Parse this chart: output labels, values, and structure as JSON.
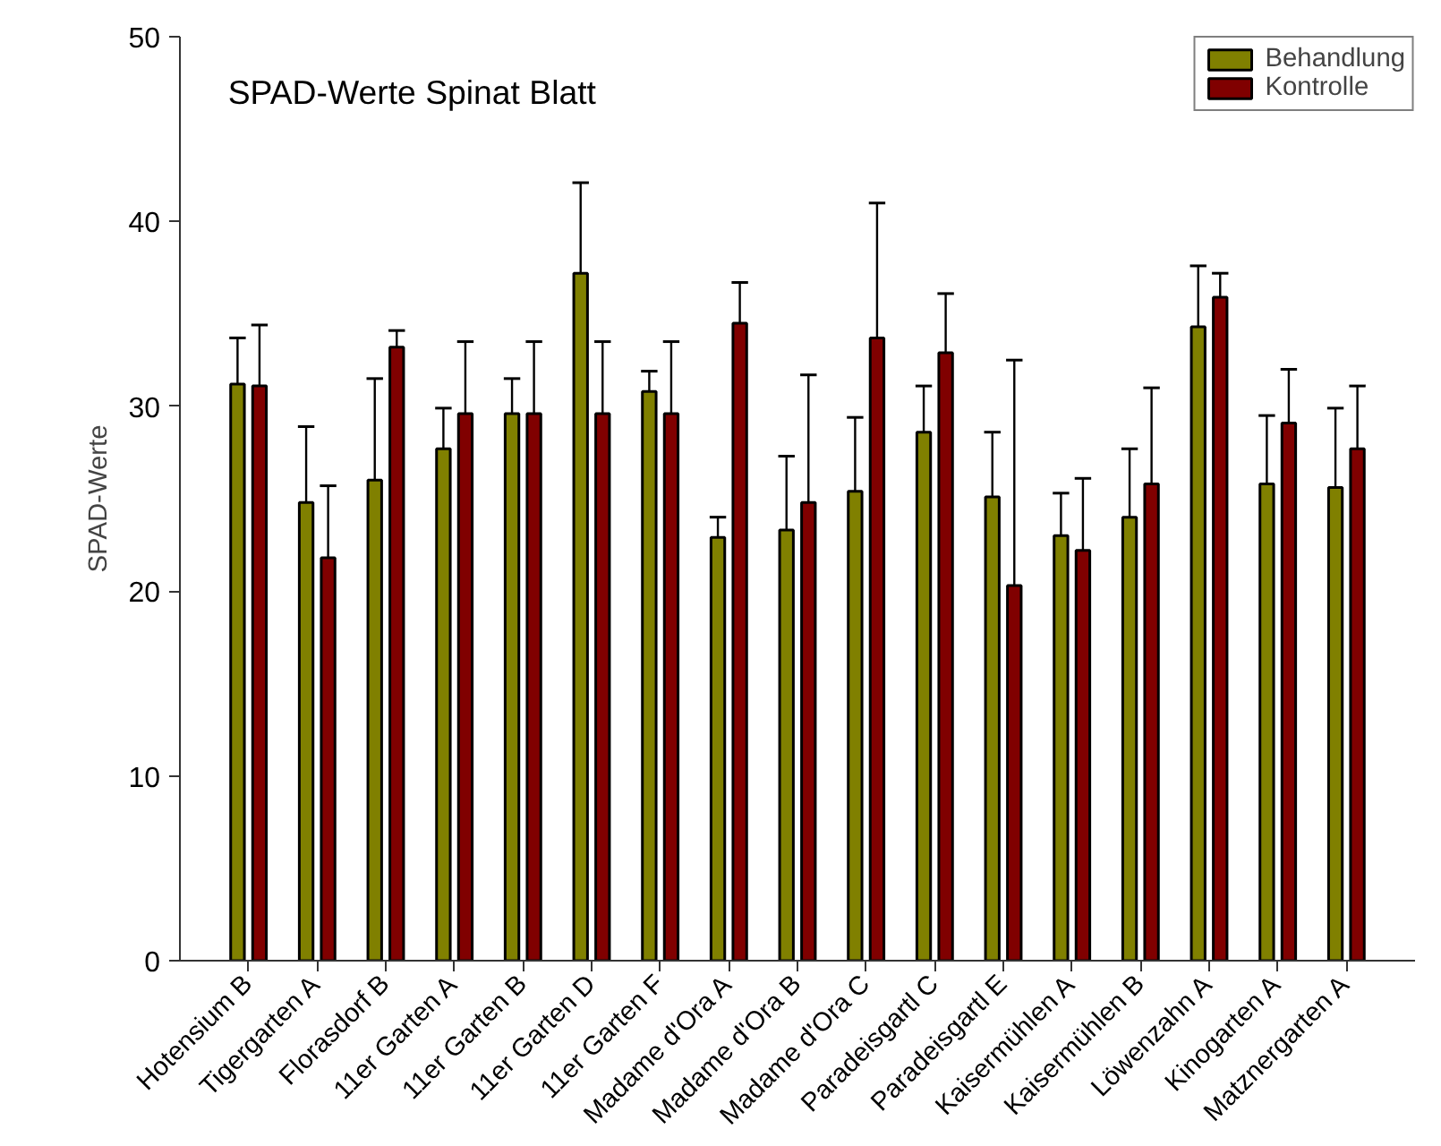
{
  "chart_data": {
    "type": "bar",
    "title": "SPAD-Werte Spinat Blatt",
    "ylabel": "SPAD-Werte",
    "categories": [
      "Hotensium B",
      "Tigergarten A",
      "Florasdorf B",
      "11er Garten A",
      "11er Garten B",
      "11er Garten D",
      "11er Garten F",
      "Madame d'Ora A",
      "Madame d'Ora B",
      "Madame d'Ora C",
      "Paradeisgartl C",
      "Paradeisgartl E",
      "Kaisermühlen A",
      "Kaisermühlen B",
      "Löwenzahn A",
      "Kinogarten A",
      "Matznergarten A"
    ],
    "series": [
      {
        "name": "Behandlung",
        "color": "#808000",
        "values": [
          31.2,
          24.8,
          26.0,
          27.7,
          29.6,
          37.2,
          30.8,
          22.9,
          23.3,
          25.4,
          28.6,
          25.1,
          23.0,
          24.0,
          34.3,
          25.8,
          25.6
        ],
        "errors": [
          [
            31.2,
            33.7
          ],
          [
            24.8,
            28.9
          ],
          [
            26.0,
            31.5
          ],
          [
            27.7,
            29.9
          ],
          [
            29.6,
            31.5
          ],
          [
            37.2,
            42.1
          ],
          [
            30.8,
            31.9
          ],
          [
            22.9,
            24.0
          ],
          [
            23.3,
            27.3
          ],
          [
            25.4,
            29.4
          ],
          [
            28.6,
            31.1
          ],
          [
            25.1,
            28.6
          ],
          [
            23.0,
            25.3
          ],
          [
            24.0,
            27.7
          ],
          [
            34.3,
            37.6
          ],
          [
            25.8,
            29.5
          ],
          [
            25.6,
            29.9
          ]
        ]
      },
      {
        "name": "Kontrolle",
        "color": "#800000",
        "values": [
          31.1,
          21.8,
          33.2,
          29.6,
          29.6,
          29.6,
          29.6,
          34.5,
          24.8,
          33.7,
          32.9,
          20.3,
          22.2,
          25.8,
          35.9,
          29.1,
          27.7
        ],
        "errors": [
          [
            31.1,
            34.4
          ],
          [
            21.8,
            25.7
          ],
          [
            33.2,
            34.1
          ],
          [
            29.6,
            33.5
          ],
          [
            29.6,
            33.5
          ],
          [
            29.6,
            33.5
          ],
          [
            29.6,
            33.5
          ],
          [
            34.5,
            36.7
          ],
          [
            24.8,
            31.7
          ],
          [
            33.7,
            41.0
          ],
          [
            32.9,
            36.1
          ],
          [
            20.3,
            32.5
          ],
          [
            22.2,
            26.1
          ],
          [
            25.8,
            31.0
          ],
          [
            35.9,
            37.2
          ],
          [
            29.1,
            32.0
          ],
          [
            27.7,
            31.1
          ]
        ]
      }
    ],
    "ylim": [
      0,
      50
    ],
    "yticks": [
      0,
      10,
      20,
      30,
      40,
      50
    ],
    "grid": false,
    "legend": "top right"
  }
}
